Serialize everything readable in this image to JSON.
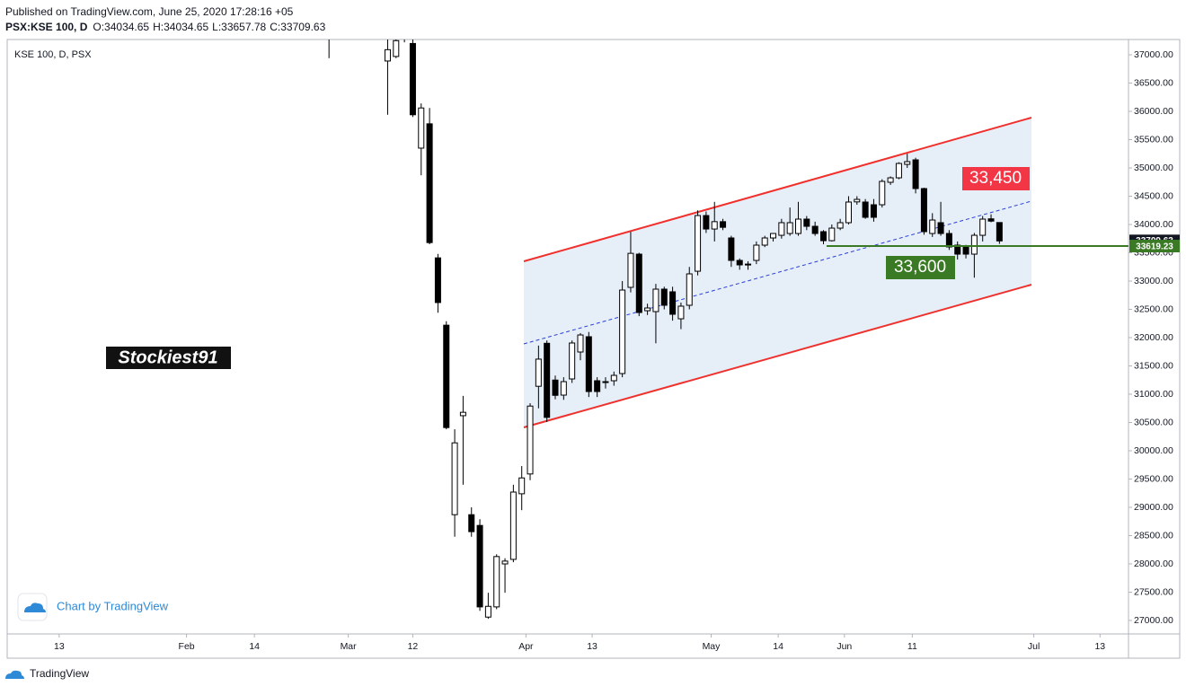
{
  "header": {
    "published": "Published on TradingView.com, June 25, 2020 17:28:16 +05",
    "symbol": "PSX:KSE 100, D",
    "ohlc": [
      "O:34034.65",
      "H:34034.65",
      "L:33657.78",
      "C:33709.63"
    ]
  },
  "chart_data": {
    "type": "candlestick",
    "title": "KSE 100, D, PSX",
    "up_color": "#ffffff",
    "down_color": "#000000",
    "candles": [
      {
        "open": 37500,
        "high": 37600,
        "low": 36940,
        "close": 37400
      },
      null,
      null,
      null,
      null,
      null,
      null,
      {
        "open": 36890,
        "high": 37300,
        "low": 35940,
        "close": 37090
      },
      {
        "open": 36970,
        "high": 37400,
        "low": 36940,
        "close": 37250
      },
      {
        "open": 37500,
        "high": 37600,
        "low": 37220,
        "close": 37400
      },
      {
        "open": 37200,
        "high": 37300,
        "low": 35900,
        "close": 35940
      },
      {
        "open": 35350,
        "high": 36140,
        "low": 34870,
        "close": 36060
      },
      {
        "open": 35780,
        "high": 36060,
        "low": 33650,
        "close": 33680
      },
      {
        "open": 33410,
        "high": 33480,
        "low": 32440,
        "close": 32620
      },
      {
        "open": 32220,
        "high": 32290,
        "low": 30380,
        "close": 30410
      },
      {
        "open": 28870,
        "high": 30380,
        "low": 28480,
        "close": 30140
      },
      {
        "open": 30620,
        "high": 30970,
        "low": 29400,
        "close": 30680
      },
      {
        "open": 28870,
        "high": 29000,
        "low": 28480,
        "close": 28570
      },
      {
        "open": 28680,
        "high": 28790,
        "low": 27170,
        "close": 27240
      },
      {
        "open": 27060,
        "high": 27490,
        "low": 27030,
        "close": 27250
      },
      {
        "open": 27240,
        "high": 28170,
        "low": 27200,
        "close": 28130
      },
      {
        "open": 28000,
        "high": 28100,
        "low": 27490,
        "close": 28050
      },
      {
        "open": 28080,
        "high": 29400,
        "low": 28030,
        "close": 29270
      },
      {
        "open": 29240,
        "high": 29730,
        "low": 28950,
        "close": 29520
      },
      {
        "open": 29590,
        "high": 30840,
        "low": 29480,
        "close": 30790
      },
      {
        "open": 31140,
        "high": 31860,
        "low": 30750,
        "close": 31620
      },
      {
        "open": 31900,
        "high": 31950,
        "low": 30510,
        "close": 30590
      },
      {
        "open": 31250,
        "high": 31330,
        "low": 30910,
        "close": 30980
      },
      {
        "open": 30984,
        "high": 31300,
        "low": 30900,
        "close": 31222
      },
      {
        "open": 31270,
        "high": 31950,
        "low": 31200,
        "close": 31905
      },
      {
        "open": 31746,
        "high": 32080,
        "low": 31600,
        "close": 32047
      },
      {
        "open": 32016,
        "high": 32100,
        "low": 30950,
        "close": 31047
      },
      {
        "open": 31238,
        "high": 31300,
        "low": 30950,
        "close": 31047
      },
      {
        "open": 31206,
        "high": 31300,
        "low": 31100,
        "close": 31222
      },
      {
        "open": 31238,
        "high": 31400,
        "low": 31150,
        "close": 31333
      },
      {
        "open": 31365,
        "high": 33000,
        "low": 31300,
        "close": 32841
      },
      {
        "open": 32889,
        "high": 33870,
        "low": 32800,
        "close": 33490
      },
      {
        "open": 33476,
        "high": 33500,
        "low": 32380,
        "close": 32444
      },
      {
        "open": 32476,
        "high": 32600,
        "low": 32400,
        "close": 32524
      },
      {
        "open": 32460,
        "high": 32950,
        "low": 31900,
        "close": 32857
      },
      {
        "open": 32857,
        "high": 32900,
        "low": 32500,
        "close": 32572
      },
      {
        "open": 32810,
        "high": 32900,
        "low": 32300,
        "close": 32413
      },
      {
        "open": 32333,
        "high": 32620,
        "low": 32150,
        "close": 32556
      },
      {
        "open": 32572,
        "high": 33250,
        "low": 32500,
        "close": 33127
      },
      {
        "open": 33174,
        "high": 34250,
        "low": 33100,
        "close": 34158
      },
      {
        "open": 34158,
        "high": 34230,
        "low": 33850,
        "close": 33920
      },
      {
        "open": 33920,
        "high": 34400,
        "low": 33700,
        "close": 34050
      },
      {
        "open": 34050,
        "high": 34100,
        "low": 33900,
        "close": 33950
      },
      {
        "open": 33762,
        "high": 33800,
        "low": 33250,
        "close": 33365
      },
      {
        "open": 33365,
        "high": 33400,
        "low": 33200,
        "close": 33286
      },
      {
        "open": 33286,
        "high": 33350,
        "low": 33200,
        "close": 33300
      },
      {
        "open": 33365,
        "high": 33700,
        "low": 33300,
        "close": 33635
      },
      {
        "open": 33635,
        "high": 33800,
        "low": 33600,
        "close": 33762
      },
      {
        "open": 33762,
        "high": 33850,
        "low": 33700,
        "close": 33841
      },
      {
        "open": 33809,
        "high": 34100,
        "low": 33750,
        "close": 34032
      },
      {
        "open": 33841,
        "high": 34300,
        "low": 33800,
        "close": 34032
      },
      {
        "open": 33841,
        "high": 34400,
        "low": 33800,
        "close": 34095
      },
      {
        "open": 34095,
        "high": 34150,
        "low": 33900,
        "close": 33968
      },
      {
        "open": 33968,
        "high": 34050,
        "low": 33800,
        "close": 33841
      },
      {
        "open": 33873,
        "high": 33900,
        "low": 33650,
        "close": 33714
      },
      {
        "open": 33714,
        "high": 34000,
        "low": 33700,
        "close": 33936
      },
      {
        "open": 33936,
        "high": 34100,
        "low": 33900,
        "close": 34032
      },
      {
        "open": 34032,
        "high": 34500,
        "low": 34000,
        "close": 34397
      },
      {
        "open": 34400,
        "high": 34500,
        "low": 34350,
        "close": 34444
      },
      {
        "open": 34397,
        "high": 34450,
        "low": 34100,
        "close": 34127
      },
      {
        "open": 34349,
        "high": 34450,
        "low": 34050,
        "close": 34127
      },
      {
        "open": 34349,
        "high": 34800,
        "low": 34300,
        "close": 34762
      },
      {
        "open": 34746,
        "high": 34850,
        "low": 34700,
        "close": 34825
      },
      {
        "open": 34825,
        "high": 35100,
        "low": 34800,
        "close": 35079
      },
      {
        "open": 35063,
        "high": 35250,
        "low": 35000,
        "close": 35111
      },
      {
        "open": 35143,
        "high": 35180,
        "low": 34550,
        "close": 34635
      },
      {
        "open": 34635,
        "high": 34650,
        "low": 33820,
        "close": 33873
      },
      {
        "open": 33841,
        "high": 34200,
        "low": 33780,
        "close": 34079
      },
      {
        "open": 34032,
        "high": 34400,
        "low": 33800,
        "close": 33841
      },
      {
        "open": 33841,
        "high": 33900,
        "low": 33550,
        "close": 33603
      },
      {
        "open": 33635,
        "high": 33700,
        "low": 33380,
        "close": 33476
      },
      {
        "open": 33603,
        "high": 33640,
        "low": 33400,
        "close": 33476
      },
      {
        "open": 33476,
        "high": 33850,
        "low": 33060,
        "close": 33809
      },
      {
        "open": 33809,
        "high": 34150,
        "low": 33700,
        "close": 34095
      },
      {
        "open": 34100,
        "high": 34180,
        "low": 34040,
        "close": 34060
      },
      {
        "open": 34034.65,
        "high": 34034.65,
        "low": 33657.78,
        "close": 33709.63
      }
    ],
    "ylim": [
      26762,
      37270
    ],
    "yticks": [
      {
        "value": 27000,
        "label": "27000.00"
      },
      {
        "value": 27500,
        "label": "27500.00"
      },
      {
        "value": 28000,
        "label": "28000.00"
      },
      {
        "value": 28500,
        "label": "28500.00"
      },
      {
        "value": 29000,
        "label": "29000.00"
      },
      {
        "value": 29500,
        "label": "29500.00"
      },
      {
        "value": 30000,
        "label": "30000.00"
      },
      {
        "value": 30500,
        "label": "30500.00"
      },
      {
        "value": 31000,
        "label": "31000.00"
      },
      {
        "value": 31500,
        "label": "31500.00"
      },
      {
        "value": 32000,
        "label": "32000.00"
      },
      {
        "value": 32500,
        "label": "32500.00"
      },
      {
        "value": 33000,
        "label": "33000.00"
      },
      {
        "value": 33500,
        "label": "33500.00"
      },
      {
        "value": 34000,
        "label": "34000.00"
      },
      {
        "value": 34500,
        "label": "34500.00"
      },
      {
        "value": 35000,
        "label": "35000.00"
      },
      {
        "value": 35500,
        "label": "35500.00"
      },
      {
        "value": 36000,
        "label": "36000.00"
      },
      {
        "value": 36500,
        "label": "36500.00"
      },
      {
        "value": 37000,
        "label": "37000.00"
      }
    ],
    "xlim": [
      -38.4,
      95.4
    ],
    "xticks": [
      {
        "value": -32.2,
        "label": "13"
      },
      {
        "value": -17.0,
        "label": "Feb"
      },
      {
        "value": -8.9,
        "label": "14"
      },
      {
        "value": 2.3,
        "label": "Mar"
      },
      {
        "value": 10.0,
        "label": "12"
      },
      {
        "value": 23.5,
        "label": "Apr"
      },
      {
        "value": 31.4,
        "label": "13"
      },
      {
        "value": 45.6,
        "label": "May"
      },
      {
        "value": 53.6,
        "label": "14"
      },
      {
        "value": 61.5,
        "label": "Jun"
      },
      {
        "value": 69.6,
        "label": "11"
      },
      {
        "value": 84.1,
        "label": "Jul"
      },
      {
        "value": 92.0,
        "label": "13"
      }
    ],
    "last_price": 33709.63,
    "level": 33619.23,
    "level_color": "#3b7a24",
    "annotations": [
      {
        "text": "33,450",
        "color": "#f23645"
      },
      {
        "text": "33,600",
        "color": "#3b7a24"
      }
    ],
    "watermark": "Stockiest91"
  },
  "footer": {
    "attribution": "Chart by TradingView",
    "brand": "TradingView"
  }
}
